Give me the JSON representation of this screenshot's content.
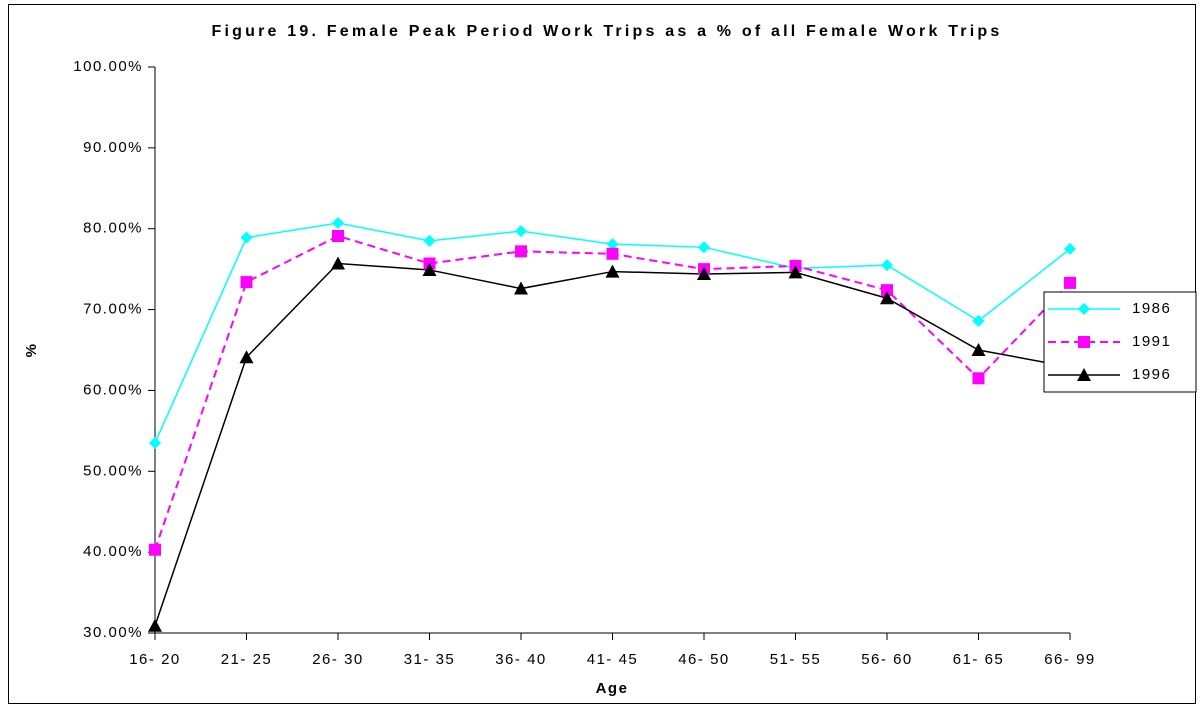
{
  "chart_data": {
    "type": "line",
    "title": "Figure 19. Female Peak Period Work Trips as a % of all Female Work Trips",
    "x_label": "Age",
    "y_label": "%",
    "categories": [
      "16- 20",
      "21- 25",
      "26- 30",
      "31- 35",
      "36- 40",
      "41- 45",
      "46- 50",
      "51- 55",
      "56- 60",
      "61- 65",
      "66- 99"
    ],
    "series": [
      {
        "name": "1986",
        "color": "#00ffff",
        "marker": "diamond",
        "dashed": false,
        "values": [
          53.5,
          78.9,
          80.7,
          78.5,
          79.7,
          78.1,
          77.7,
          75.1,
          75.5,
          68.6,
          77.5
        ]
      },
      {
        "name": "1991",
        "color": "#ff00ff",
        "marker": "square",
        "dashed": true,
        "values": [
          40.3,
          73.4,
          79.1,
          75.7,
          77.2,
          76.9,
          75.0,
          75.4,
          72.4,
          61.5,
          73.3
        ]
      },
      {
        "name": "1996",
        "color": "#000000",
        "marker": "triangle",
        "dashed": false,
        "values": [
          30.9,
          64.1,
          75.7,
          74.9,
          72.6,
          74.7,
          74.4,
          74.6,
          71.4,
          65.0,
          62.9
        ]
      }
    ],
    "ylim": [
      30,
      100
    ],
    "yticks": [
      {
        "value": 30,
        "label": "30.00%"
      },
      {
        "value": 40,
        "label": "40.00%"
      },
      {
        "value": 50,
        "label": "50.00%"
      },
      {
        "value": 60,
        "label": "60.00%"
      },
      {
        "value": 70,
        "label": "70.00%"
      },
      {
        "value": 80,
        "label": "80.00%"
      },
      {
        "value": 90,
        "label": "90.00%"
      },
      {
        "value": 100,
        "label": "100.00%"
      }
    ],
    "grid": false,
    "legend": "right"
  }
}
